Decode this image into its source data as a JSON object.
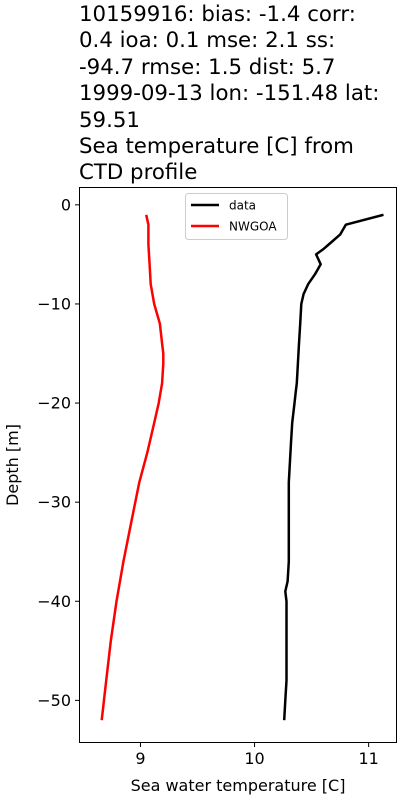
{
  "title_lines": [
    "10159916: bias: -1.4  corr:",
    "0.4  ioa: 0.1  mse: 2.1  ss:",
    "-94.7  rmse: 1.5  dist: 5.7",
    "1999-09-13 lon: -151.48 lat:",
    "59.51",
    "Sea temperature [C] from",
    "CTD profile"
  ],
  "chart_data": {
    "type": "line",
    "xlabel": "Sea water temperature [C]",
    "ylabel": "Depth [m]",
    "xlim": [
      8.47,
      11.24
    ],
    "ylim": [
      -54.2,
      1.7
    ],
    "xticks": [
      9,
      10,
      11
    ],
    "yticks": [
      0,
      -10,
      -20,
      -30,
      -40,
      -50
    ],
    "grid": false,
    "legend_position": "top-center",
    "series": [
      {
        "name": "data",
        "color": "#000000",
        "points": [
          [
            11.13,
            -1
          ],
          [
            10.8,
            -2
          ],
          [
            10.75,
            -3
          ],
          [
            10.65,
            -4
          ],
          [
            10.6,
            -4.5
          ],
          [
            10.54,
            -5
          ],
          [
            10.58,
            -6
          ],
          [
            10.53,
            -7
          ],
          [
            10.47,
            -8
          ],
          [
            10.43,
            -9
          ],
          [
            10.41,
            -10
          ],
          [
            10.4,
            -12
          ],
          [
            10.39,
            -14
          ],
          [
            10.38,
            -16
          ],
          [
            10.37,
            -18
          ],
          [
            10.36,
            -19
          ],
          [
            10.35,
            -20
          ],
          [
            10.33,
            -22
          ],
          [
            10.32,
            -24
          ],
          [
            10.31,
            -26
          ],
          [
            10.3,
            -28
          ],
          [
            10.3,
            -30
          ],
          [
            10.3,
            -32
          ],
          [
            10.3,
            -34
          ],
          [
            10.3,
            -36
          ],
          [
            10.29,
            -38
          ],
          [
            10.27,
            -39
          ],
          [
            10.28,
            -40
          ],
          [
            10.28,
            -42
          ],
          [
            10.28,
            -45
          ],
          [
            10.28,
            -48
          ],
          [
            10.27,
            -50
          ],
          [
            10.26,
            -52
          ]
        ]
      },
      {
        "name": "NWGOA",
        "color": "#ff0000",
        "points": [
          [
            9.05,
            -1
          ],
          [
            9.07,
            -2
          ],
          [
            9.07,
            -4
          ],
          [
            9.08,
            -6
          ],
          [
            9.09,
            -8
          ],
          [
            9.12,
            -10
          ],
          [
            9.17,
            -12
          ],
          [
            9.19,
            -14
          ],
          [
            9.2,
            -15
          ],
          [
            9.2,
            -16
          ],
          [
            9.19,
            -18
          ],
          [
            9.16,
            -20
          ],
          [
            9.12,
            -22
          ],
          [
            9.06,
            -25
          ],
          [
            8.99,
            -28
          ],
          [
            8.92,
            -32
          ],
          [
            8.85,
            -36
          ],
          [
            8.79,
            -40
          ],
          [
            8.74,
            -44
          ],
          [
            8.7,
            -48
          ],
          [
            8.66,
            -52
          ]
        ]
      }
    ]
  }
}
